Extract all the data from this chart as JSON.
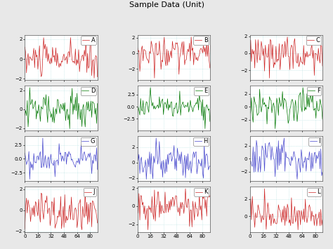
{
  "title": "Sample Data (Unit)",
  "n_points": 90,
  "subplots": [
    {
      "label": "A",
      "color": "#cc2222",
      "row": 0,
      "col": 0
    },
    {
      "label": "B",
      "color": "#cc2222",
      "row": 0,
      "col": 1
    },
    {
      "label": "C",
      "color": "#cc2222",
      "row": 0,
      "col": 2
    },
    {
      "label": "D",
      "color": "#007700",
      "row": 1,
      "col": 0
    },
    {
      "label": "E",
      "color": "#007700",
      "row": 1,
      "col": 1
    },
    {
      "label": "F",
      "color": "#007700",
      "row": 1,
      "col": 2
    },
    {
      "label": "G",
      "color": "#4444cc",
      "row": 2,
      "col": 0
    },
    {
      "label": "H",
      "color": "#4444cc",
      "row": 2,
      "col": 1
    },
    {
      "label": "I",
      "color": "#4444cc",
      "row": 2,
      "col": 2
    },
    {
      "label": "J",
      "color": "#cc2222",
      "row": 3,
      "col": 0
    },
    {
      "label": "K",
      "color": "#cc2222",
      "row": 3,
      "col": 1
    },
    {
      "label": "L",
      "color": "#cc2222",
      "row": 3,
      "col": 2
    }
  ],
  "xticks": [
    0,
    16,
    32,
    48,
    64,
    80
  ],
  "grid_color": "#aadddd",
  "background_color": "#ffffff",
  "fig_facecolor": "#e8e8e8",
  "figsize": [
    4.74,
    3.55
  ],
  "dpi": 100,
  "seeds": [
    10,
    20,
    30,
    40,
    50,
    60,
    70,
    80,
    90,
    100,
    110,
    120
  ],
  "scales": [
    0.9,
    1.0,
    1.0,
    1.0,
    1.2,
    1.2,
    1.2,
    1.2,
    1.5,
    1.0,
    1.0,
    1.0
  ]
}
